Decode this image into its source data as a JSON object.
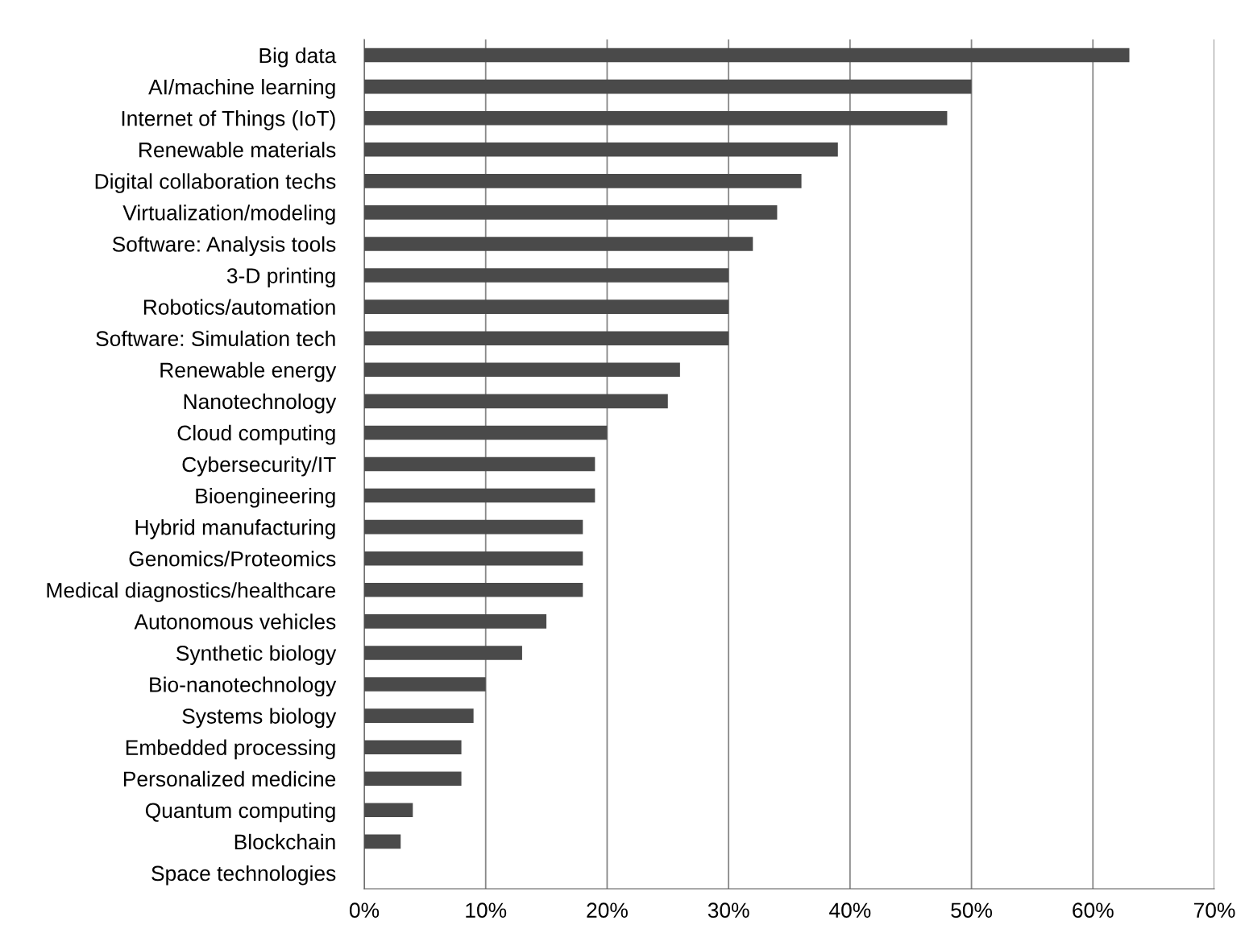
{
  "chart_data": {
    "type": "bar",
    "orientation": "horizontal",
    "categories": [
      "Big data",
      "AI/machine learning",
      "Internet of Things (IoT)",
      "Renewable materials",
      "Digital collaboration techs",
      "Virtualization/modeling",
      "Software: Analysis tools",
      "3-D printing",
      "Robotics/automation",
      "Software: Simulation tech",
      "Renewable energy",
      "Nanotechnology",
      "Cloud computing",
      "Cybersecurity/IT",
      "Bioengineering",
      "Hybrid manufacturing",
      "Genomics/Proteomics",
      "Medical diagnostics/healthcare",
      "Autonomous vehicles",
      "Synthetic biology",
      "Bio-nanotechnology",
      "Systems biology",
      "Embedded processing",
      "Personalized medicine",
      "Quantum computing",
      "Blockchain",
      "Space technologies"
    ],
    "values": [
      63,
      50,
      48,
      39,
      36,
      34,
      32,
      30,
      30,
      30,
      26,
      25,
      20,
      19,
      19,
      18,
      18,
      18,
      15,
      13,
      10,
      9,
      8,
      8,
      4,
      3,
      0
    ],
    "color": "#4a4a4a",
    "xlim": [
      0,
      70
    ],
    "xticks": [
      {
        "value": 0,
        "label": "0%"
      },
      {
        "value": 10,
        "label": "10%"
      },
      {
        "value": 20,
        "label": "20%"
      },
      {
        "value": 30,
        "label": "30%"
      },
      {
        "value": 40,
        "label": "40%"
      },
      {
        "value": 50,
        "label": "50%"
      },
      {
        "value": 60,
        "label": "60%"
      },
      {
        "value": 70,
        "label": "70%"
      }
    ],
    "grid": "x"
  }
}
